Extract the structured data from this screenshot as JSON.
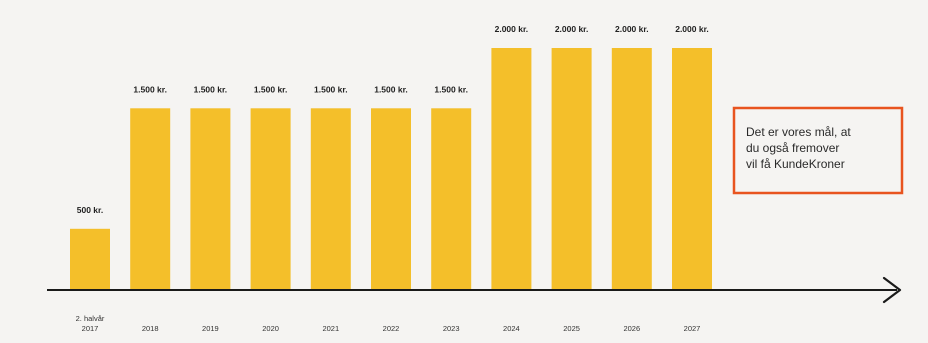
{
  "colors": {
    "background": "#f5f4f2",
    "bar": "#f4bf2a",
    "axis": "#1a1a1a",
    "callout_border": "#e8541f",
    "text": "#222222"
  },
  "callout": {
    "lines": [
      "Det er vores mål, at",
      "du også fremover",
      "vil få KundeKroner"
    ]
  },
  "chart_data": {
    "type": "bar",
    "title": "",
    "xlabel": "",
    "ylabel": "",
    "ylim": [
      0,
      2000
    ],
    "grid": false,
    "legend": "none",
    "categories": [
      [
        "2. halvår",
        "2017"
      ],
      [
        "2018"
      ],
      [
        "2019"
      ],
      [
        "2020"
      ],
      [
        "2021"
      ],
      [
        "2022"
      ],
      [
        "2023"
      ],
      [
        "2024"
      ],
      [
        "2025"
      ],
      [
        "2026"
      ],
      [
        "2027"
      ]
    ],
    "values": [
      500,
      1500,
      1500,
      1500,
      1500,
      1500,
      1500,
      2000,
      2000,
      2000,
      2000
    ],
    "value_labels": [
      "500 kr.",
      "1.500 kr.",
      "1.500 kr.",
      "1.500 kr.",
      "1.500 kr.",
      "1.500 kr.",
      "1.500 kr.",
      "2.000 kr.",
      "2.000 kr.",
      "2.000 kr.",
      "2.000 kr."
    ]
  }
}
